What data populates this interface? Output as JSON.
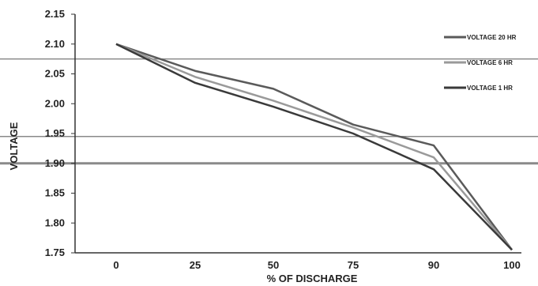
{
  "chart_data": {
    "type": "line",
    "x": [
      0,
      25,
      50,
      75,
      90,
      100
    ],
    "x_tick_labels": [
      "0",
      "25",
      "50",
      "75",
      "90",
      "100"
    ],
    "xlabel": "% OF DISCHARGE",
    "ylabel": "VOLTAGE",
    "ylim": [
      1.75,
      2.15
    ],
    "y_tick_labels": [
      "1.75",
      "1.80",
      "1.85",
      "1.90",
      "1.95",
      "2.00",
      "2.05",
      "2.10",
      "2.15"
    ],
    "reference_lines": [
      2.075,
      1.945,
      1.9
    ],
    "legend_position": "top-right",
    "series": [
      {
        "name": "VOLTAGE 20 HR",
        "color": "#5a5a5a",
        "values": [
          2.1,
          2.055,
          2.025,
          1.965,
          1.93,
          1.755
        ]
      },
      {
        "name": "VOLTAGE 6 HR",
        "color": "#9a9a9a",
        "values": [
          2.1,
          2.045,
          2.005,
          1.96,
          1.91,
          1.755
        ]
      },
      {
        "name": "VOLTAGE 1 HR",
        "color": "#3a3a3a",
        "values": [
          2.1,
          2.035,
          1.995,
          1.95,
          1.89,
          1.755
        ]
      }
    ]
  }
}
